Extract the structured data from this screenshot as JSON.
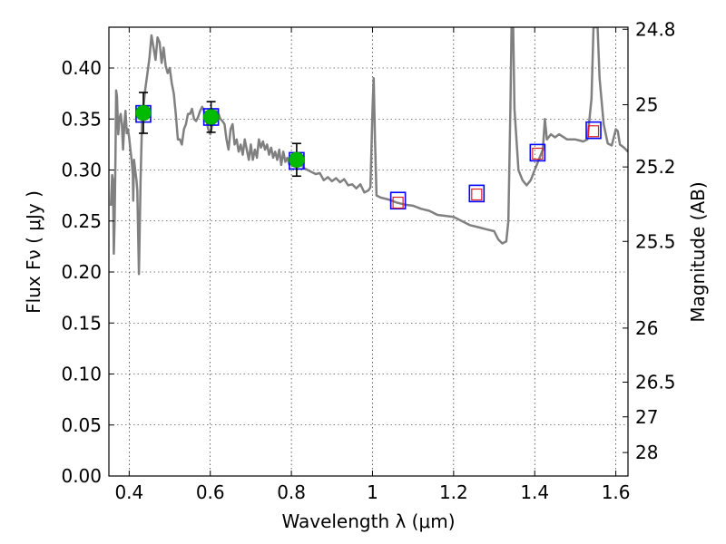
{
  "chart_data": {
    "type": "scatter",
    "title": "",
    "xlabel": "Wavelength  λ (μm)",
    "ylabel": "Flux  Fν  ( μJy )",
    "y2label": "Magnitude (AB)",
    "xlim": [
      0.35,
      1.63
    ],
    "ylim": [
      0.0,
      0.44
    ],
    "grid": true,
    "x_ticks": [
      0.4,
      0.6,
      0.8,
      1.0,
      1.2,
      1.4,
      1.6
    ],
    "x_tick_labels": [
      "0.4",
      "0.6",
      "0.8",
      "1",
      "1.2",
      "1.4",
      "1.6"
    ],
    "y_ticks": [
      0.0,
      0.05,
      0.1,
      0.15,
      0.2,
      0.25,
      0.3,
      0.35,
      0.4
    ],
    "y_tick_labels": [
      "0.00",
      "0.05",
      "0.10",
      "0.15",
      "0.20",
      "0.25",
      "0.30",
      "0.35",
      "0.40"
    ],
    "y2_ticks": [
      {
        "label": "24.8",
        "flux": 0.438
      },
      {
        "label": "25",
        "flux": 0.364
      },
      {
        "label": "25.2",
        "flux": 0.303
      },
      {
        "label": "25.5",
        "flux": 0.23
      },
      {
        "label": "26",
        "flux": 0.145
      },
      {
        "label": "26.5",
        "flux": 0.092
      },
      {
        "label": "27",
        "flux": 0.058
      },
      {
        "label": "28",
        "flux": 0.023
      }
    ],
    "series": [
      {
        "type": "line",
        "color": "#808080",
        "points": [
          [
            0.355,
            0.265
          ],
          [
            0.358,
            0.295
          ],
          [
            0.36,
            0.29
          ],
          [
            0.362,
            0.218
          ],
          [
            0.364,
            0.25
          ],
          [
            0.366,
            0.31
          ],
          [
            0.368,
            0.378
          ],
          [
            0.37,
            0.372
          ],
          [
            0.373,
            0.335
          ],
          [
            0.376,
            0.35
          ],
          [
            0.379,
            0.355
          ],
          [
            0.382,
            0.345
          ],
          [
            0.385,
            0.32
          ],
          [
            0.388,
            0.345
          ],
          [
            0.391,
            0.358
          ],
          [
            0.394,
            0.336
          ],
          [
            0.397,
            0.34
          ],
          [
            0.4,
            0.332
          ],
          [
            0.403,
            0.32
          ],
          [
            0.406,
            0.31
          ],
          [
            0.409,
            0.295
          ],
          [
            0.41,
            0.27
          ],
          [
            0.412,
            0.31
          ],
          [
            0.415,
            0.3
          ],
          [
            0.418,
            0.29
          ],
          [
            0.42,
            0.28
          ],
          [
            0.424,
            0.198
          ],
          [
            0.428,
            0.29
          ],
          [
            0.432,
            0.35
          ],
          [
            0.436,
            0.365
          ],
          [
            0.44,
            0.38
          ],
          [
            0.445,
            0.395
          ],
          [
            0.45,
            0.41
          ],
          [
            0.455,
            0.432
          ],
          [
            0.46,
            0.42
          ],
          [
            0.465,
            0.408
          ],
          [
            0.47,
            0.43
          ],
          [
            0.475,
            0.425
          ],
          [
            0.48,
            0.405
          ],
          [
            0.485,
            0.42
          ],
          [
            0.49,
            0.402
          ],
          [
            0.495,
            0.395
          ],
          [
            0.5,
            0.4
          ],
          [
            0.505,
            0.385
          ],
          [
            0.51,
            0.375
          ],
          [
            0.515,
            0.355
          ],
          [
            0.52,
            0.33
          ],
          [
            0.525,
            0.33
          ],
          [
            0.53,
            0.325
          ],
          [
            0.535,
            0.34
          ],
          [
            0.54,
            0.345
          ],
          [
            0.545,
            0.355
          ],
          [
            0.55,
            0.355
          ],
          [
            0.555,
            0.36
          ],
          [
            0.56,
            0.35
          ],
          [
            0.565,
            0.348
          ],
          [
            0.57,
            0.352
          ],
          [
            0.575,
            0.358
          ],
          [
            0.58,
            0.362
          ],
          [
            0.585,
            0.358
          ],
          [
            0.59,
            0.35
          ],
          [
            0.595,
            0.34
          ],
          [
            0.6,
            0.335
          ],
          [
            0.605,
            0.345
          ],
          [
            0.61,
            0.352
          ],
          [
            0.615,
            0.358
          ],
          [
            0.62,
            0.355
          ],
          [
            0.625,
            0.35
          ],
          [
            0.63,
            0.348
          ],
          [
            0.635,
            0.345
          ],
          [
            0.64,
            0.33
          ],
          [
            0.645,
            0.32
          ],
          [
            0.65,
            0.34
          ],
          [
            0.655,
            0.345
          ],
          [
            0.66,
            0.325
          ],
          [
            0.665,
            0.33
          ],
          [
            0.67,
            0.318
          ],
          [
            0.675,
            0.325
          ],
          [
            0.68,
            0.315
          ],
          [
            0.685,
            0.33
          ],
          [
            0.69,
            0.32
          ],
          [
            0.695,
            0.31
          ],
          [
            0.7,
            0.325
          ],
          [
            0.705,
            0.31
          ],
          [
            0.71,
            0.32
          ],
          [
            0.715,
            0.312
          ],
          [
            0.72,
            0.33
          ],
          [
            0.725,
            0.322
          ],
          [
            0.73,
            0.328
          ],
          [
            0.735,
            0.32
          ],
          [
            0.74,
            0.325
          ],
          [
            0.745,
            0.315
          ],
          [
            0.75,
            0.322
          ],
          [
            0.755,
            0.312
          ],
          [
            0.76,
            0.318
          ],
          [
            0.765,
            0.31
          ],
          [
            0.77,
            0.32
          ],
          [
            0.775,
            0.305
          ],
          [
            0.78,
            0.318
          ],
          [
            0.785,
            0.308
          ],
          [
            0.79,
            0.312
          ],
          [
            0.795,
            0.305
          ],
          [
            0.8,
            0.312
          ],
          [
            0.81,
            0.306
          ],
          [
            0.82,
            0.31
          ],
          [
            0.83,
            0.302
          ],
          [
            0.84,
            0.3
          ],
          [
            0.85,
            0.298
          ],
          [
            0.86,
            0.296
          ],
          [
            0.87,
            0.297
          ],
          [
            0.88,
            0.29
          ],
          [
            0.89,
            0.293
          ],
          [
            0.9,
            0.289
          ],
          [
            0.91,
            0.292
          ],
          [
            0.92,
            0.288
          ],
          [
            0.93,
            0.291
          ],
          [
            0.94,
            0.285
          ],
          [
            0.95,
            0.286
          ],
          [
            0.96,
            0.282
          ],
          [
            0.97,
            0.286
          ],
          [
            0.98,
            0.278
          ],
          [
            0.99,
            0.28
          ],
          [
            0.995,
            0.283
          ],
          [
            1.0,
            0.36
          ],
          [
            1.003,
            0.39
          ],
          [
            1.006,
            0.33
          ],
          [
            1.01,
            0.275
          ],
          [
            1.02,
            0.273
          ],
          [
            1.03,
            0.272
          ],
          [
            1.04,
            0.271
          ],
          [
            1.06,
            0.268
          ],
          [
            1.08,
            0.266
          ],
          [
            1.1,
            0.265
          ],
          [
            1.12,
            0.262
          ],
          [
            1.14,
            0.26
          ],
          [
            1.16,
            0.256
          ],
          [
            1.18,
            0.255
          ],
          [
            1.2,
            0.254
          ],
          [
            1.22,
            0.25
          ],
          [
            1.24,
            0.246
          ],
          [
            1.26,
            0.244
          ],
          [
            1.28,
            0.242
          ],
          [
            1.3,
            0.24
          ],
          [
            1.31,
            0.232
          ],
          [
            1.32,
            0.228
          ],
          [
            1.33,
            0.23
          ],
          [
            1.335,
            0.25
          ],
          [
            1.34,
            0.36
          ],
          [
            1.343,
            0.44
          ],
          [
            1.347,
            0.44
          ],
          [
            1.35,
            0.36
          ],
          [
            1.36,
            0.3
          ],
          [
            1.37,
            0.29
          ],
          [
            1.38,
            0.285
          ],
          [
            1.39,
            0.29
          ],
          [
            1.4,
            0.3
          ],
          [
            1.41,
            0.31
          ],
          [
            1.42,
            0.32
          ],
          [
            1.425,
            0.35
          ],
          [
            1.43,
            0.33
          ],
          [
            1.44,
            0.335
          ],
          [
            1.45,
            0.332
          ],
          [
            1.46,
            0.335
          ],
          [
            1.48,
            0.33
          ],
          [
            1.5,
            0.33
          ],
          [
            1.52,
            0.328
          ],
          [
            1.53,
            0.33
          ],
          [
            1.54,
            0.37
          ],
          [
            1.545,
            0.44
          ],
          [
            1.555,
            0.44
          ],
          [
            1.56,
            0.39
          ],
          [
            1.57,
            0.345
          ],
          [
            1.58,
            0.326
          ],
          [
            1.59,
            0.324
          ],
          [
            1.6,
            0.34
          ],
          [
            1.605,
            0.338
          ],
          [
            1.61,
            0.325
          ],
          [
            1.62,
            0.322
          ],
          [
            1.63,
            0.318
          ]
        ]
      },
      {
        "type": "model_photometry",
        "marker": "open-square",
        "color": "#0000ff",
        "points": [
          [
            0.435,
            0.355
          ],
          [
            0.602,
            0.352
          ],
          [
            0.813,
            0.309
          ],
          [
            1.063,
            0.27
          ],
          [
            1.257,
            0.277
          ],
          [
            1.407,
            0.317
          ],
          [
            1.545,
            0.339
          ]
        ]
      },
      {
        "type": "detections",
        "marker": "filled-circle",
        "color": "#00bb00",
        "points": [
          {
            "x": 0.435,
            "y": 0.356,
            "yerr": 0.02
          },
          {
            "x": 0.602,
            "y": 0.352,
            "yerr": 0.015
          },
          {
            "x": 0.813,
            "y": 0.31,
            "yerr": 0.016
          }
        ]
      },
      {
        "type": "non_detections",
        "marker": "open-square",
        "color": "#dd2222",
        "points": [
          [
            1.063,
            0.268
          ],
          [
            1.257,
            0.276
          ],
          [
            1.407,
            0.316
          ],
          [
            1.545,
            0.338
          ]
        ]
      }
    ]
  }
}
